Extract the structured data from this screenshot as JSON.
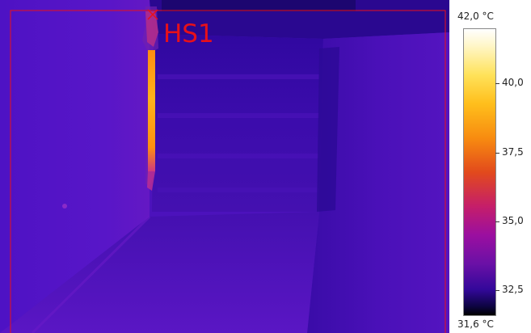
{
  "image": {
    "hotspot_label": "HS1",
    "colors": {
      "frame": "#e8101a",
      "background_purple": "#5414c8",
      "hot_edge": "#ff9a10"
    }
  },
  "scale": {
    "max_label": "42,0 °C",
    "min_label": "31,6 °C",
    "ticks": [
      "40,0",
      "37,5",
      "35,0",
      "32,5"
    ]
  }
}
